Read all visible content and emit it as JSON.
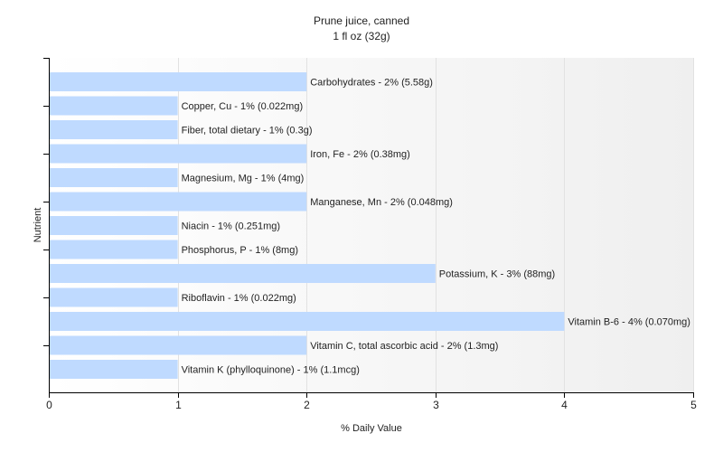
{
  "chart_data": {
    "type": "bar",
    "orientation": "horizontal",
    "title": "Prune juice, canned",
    "subtitle": "1 fl oz (32g)",
    "xlabel": "% Daily Value",
    "ylabel": "Nutrient",
    "xlim": [
      0,
      5
    ],
    "x_ticks": [
      "0",
      "1",
      "2",
      "3",
      "4",
      "5"
    ],
    "grid": true,
    "bar_color": "#bfdaff",
    "categories": [
      "Carbohydrates",
      "Copper, Cu",
      "Fiber, total dietary",
      "Iron, Fe",
      "Magnesium, Mg",
      "Manganese, Mn",
      "Niacin",
      "Phosphorus, P",
      "Potassium, K",
      "Riboflavin",
      "Vitamin B-6",
      "Vitamin C, total ascorbic acid",
      "Vitamin K (phylloquinone)"
    ],
    "values": [
      2,
      1,
      1,
      2,
      1,
      2,
      1,
      1,
      3,
      1,
      4,
      2,
      1
    ],
    "labels": [
      "Carbohydrates - 2% (5.58g)",
      "Copper, Cu - 1% (0.022mg)",
      "Fiber, total dietary - 1% (0.3g)",
      "Iron, Fe - 2% (0.38mg)",
      "Magnesium, Mg - 1% (4mg)",
      "Manganese, Mn - 2% (0.048mg)",
      "Niacin - 1% (0.251mg)",
      "Phosphorus, P - 1% (8mg)",
      "Potassium, K - 3% (88mg)",
      "Riboflavin - 1% (0.022mg)",
      "Vitamin B-6 - 4% (0.070mg)",
      "Vitamin C, total ascorbic acid - 2% (1.3mg)",
      "Vitamin K (phylloquinone) - 1% (1.1mcg)"
    ]
  }
}
